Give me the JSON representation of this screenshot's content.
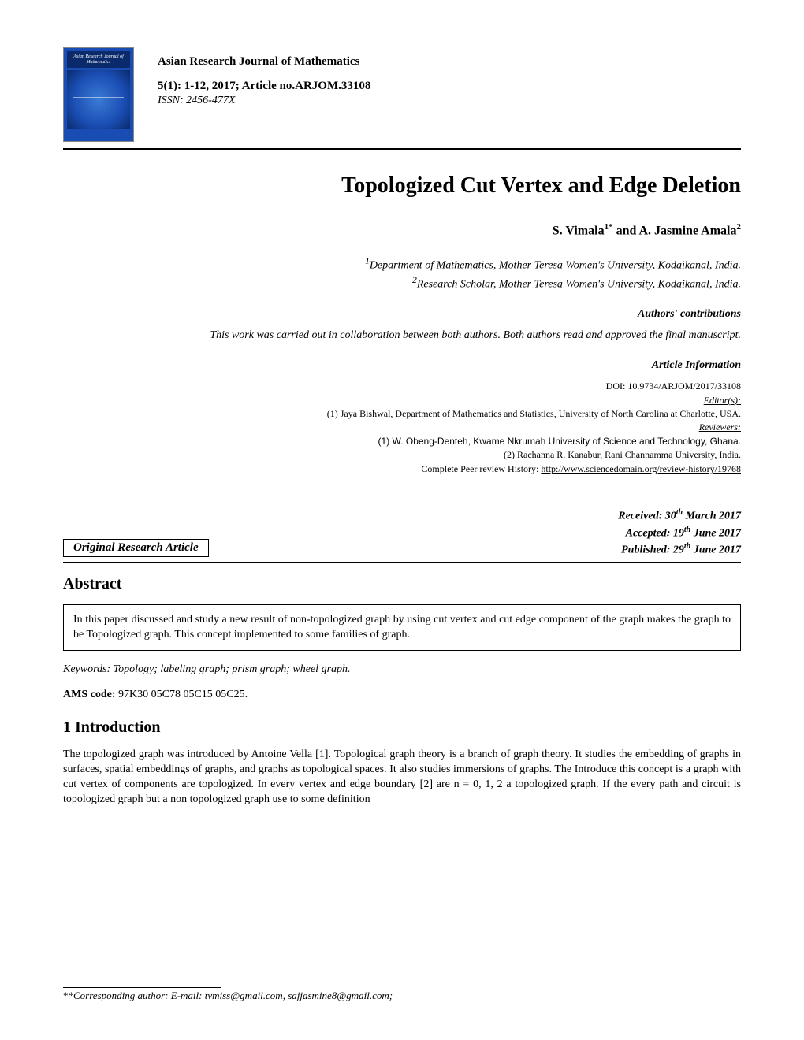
{
  "journal": {
    "name": "Asian Research Journal of Mathematics",
    "citation": "5(1): 1-12, 2017; Article no.ARJOM.33108",
    "issn": "ISSN: 2456-477X",
    "logo_title": "Asian Research Journal of Mathematics"
  },
  "title": "Topologized Cut Vertex and Edge Deletion",
  "authors_html": "S. Vimala<sup>1*</sup> and A. Jasmine Amala<sup>2</sup>",
  "affiliations": {
    "line1": "<sup>1</sup>Department of Mathematics, Mother Teresa Women's University, Kodaikanal, India.",
    "line2": "<sup>2</sup>Research Scholar, Mother Teresa Women's University, Kodaikanal, India."
  },
  "contributions": {
    "label": "Authors' contributions",
    "text": "This work was carried out in collaboration between both authors. Both authors read and approved the final manuscript."
  },
  "article_info": {
    "label": "Article Information",
    "doi": "DOI: 10.9734/ARJOM/2017/33108",
    "editors_label": "Editor(s):",
    "editor1": "(1) Jaya Bishwal, Department of Mathematics and Statistics, University of North Carolina at Charlotte, USA.",
    "reviewers_label": "Reviewers:",
    "reviewer1": "(1) W. Obeng-Denteh, Kwame Nkrumah University of Science and Technology, Ghana.",
    "reviewer2": "(2) Rachanna R. Kanabur, Rani Channamma University, India.",
    "history_label": "Complete Peer review History:",
    "history_url": "http://www.sciencedomain.org/review-history/19768"
  },
  "article_type": "Original Research Article",
  "dates": {
    "received": "Received: 30<sup>th</sup> March 2017",
    "accepted": "Accepted: 19<sup>th</sup> June 2017",
    "published": "Published: 29<sup>th</sup> June 2017"
  },
  "abstract": {
    "heading": "Abstract",
    "text": "In this paper discussed and study a new result of non-topologized graph by using cut vertex and cut edge component of the graph makes the graph to be Topologized graph. This concept implemented to some families of graph."
  },
  "keywords": "Keywords: Topology; labeling graph; prism graph; wheel graph.",
  "ams": {
    "label": "AMS code:",
    "codes": "97K30 05C78 05C15 05C25."
  },
  "intro": {
    "heading": "1 Introduction",
    "text": "The topologized graph was introduced by Antoine Vella [1]. Topological graph theory is a branch of graph theory. It studies the embedding of graphs in surfaces, spatial embeddings of graphs, and graphs as topological spaces. It also studies immersions of graphs. The Introduce this concept is a graph with cut vertex of components are topologized. In every vertex and edge boundary [2] are n = 0, 1, 2 a topologized graph. If the every path and circuit is topologized graph but a non topologized graph use to some definition"
  },
  "footnote": {
    "label": "*Corresponding author: E-mail: ",
    "emails": "tvmiss@gmail.com, sajjasmine8@gmail.com;"
  }
}
